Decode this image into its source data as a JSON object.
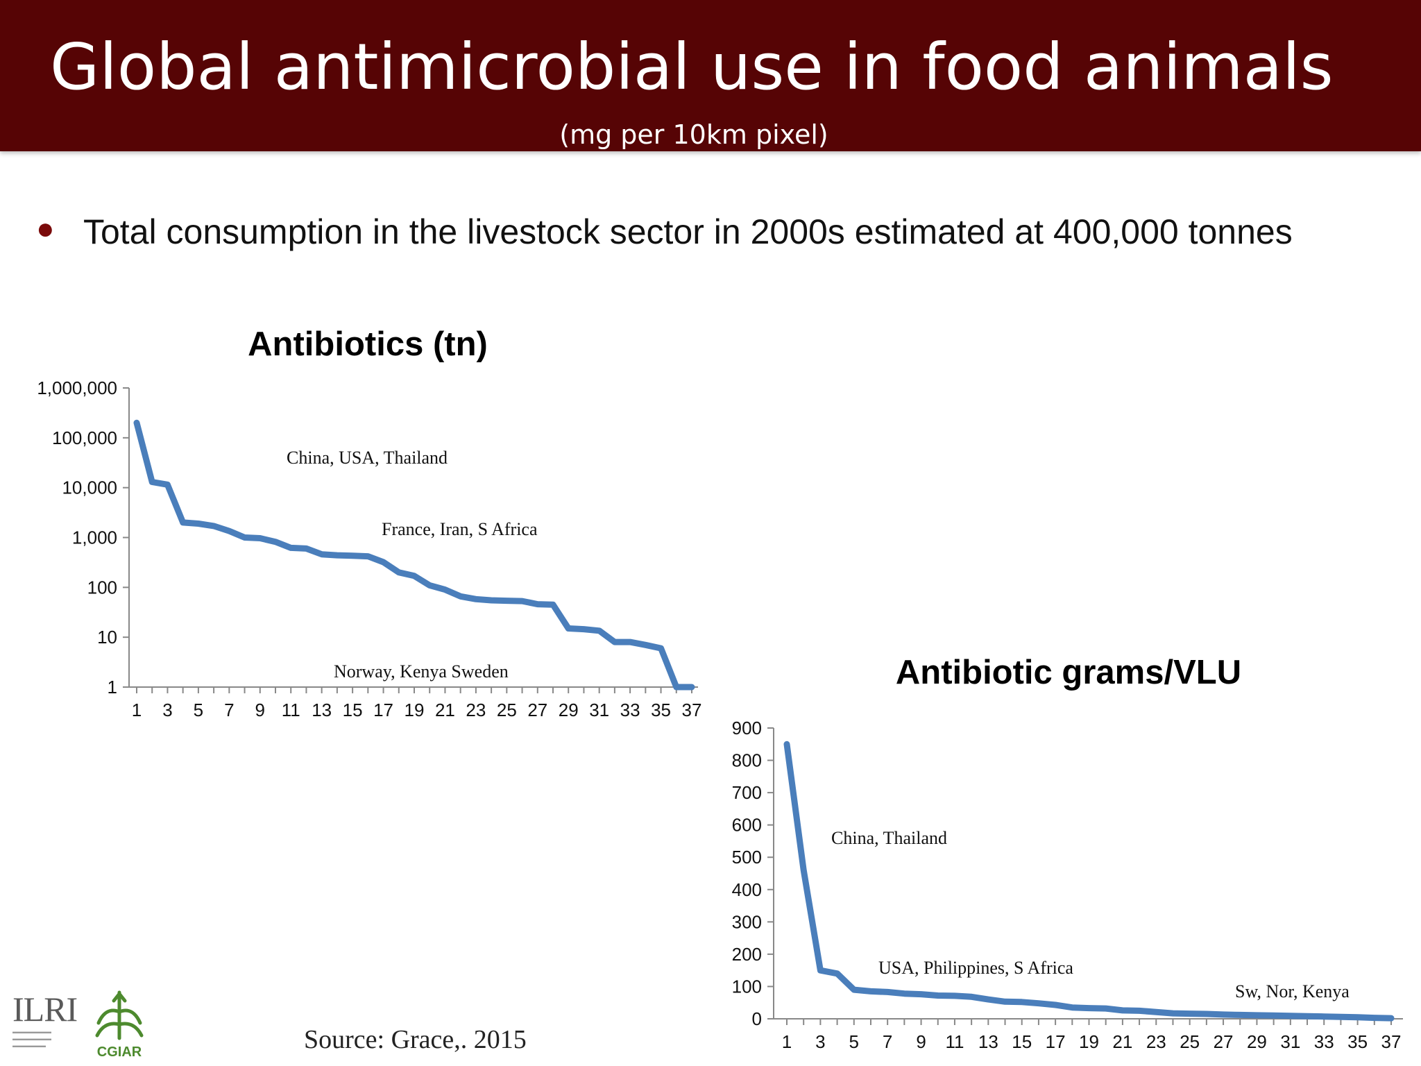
{
  "header": {
    "title": "Global antimicrobial use in food animals",
    "subtitle": "(mg per 10km pixel)"
  },
  "bullet": {
    "text": "Total consumption in the livestock sector in 2000s estimated at 400,000 tonnes"
  },
  "source": "Source: Grace,. 2015",
  "logos": {
    "ilri": "ILRI",
    "cgiar": "CGIAR"
  },
  "colors": {
    "header_bg": "#560405",
    "line": "#4a7ebb",
    "bullet": "#7a0a0a"
  },
  "chart_data": [
    {
      "type": "line",
      "title": "Antibiotics (tn)",
      "yscale": "log",
      "ylim": [
        1,
        1000000
      ],
      "y_ticks": [
        "1",
        "10",
        "100",
        "1,000",
        "10,000",
        "100,000",
        "1,000,000"
      ],
      "x_ticks": [
        "1",
        "3",
        "5",
        "7",
        "9",
        "11",
        "13",
        "15",
        "17",
        "19",
        "21",
        "23",
        "25",
        "27",
        "29",
        "31",
        "33",
        "35",
        "37"
      ],
      "x": [
        1,
        2,
        3,
        4,
        5,
        6,
        7,
        8,
        9,
        10,
        11,
        12,
        13,
        14,
        15,
        16,
        17,
        18,
        19,
        20,
        21,
        22,
        23,
        24,
        25,
        26,
        27,
        28,
        29,
        30,
        31,
        32,
        33,
        34,
        35,
        36,
        37
      ],
      "values": [
        200000,
        13000,
        11500,
        2000,
        1900,
        1700,
        1350,
        1000,
        970,
        820,
        620,
        600,
        460,
        440,
        430,
        420,
        320,
        200,
        170,
        110,
        90,
        66,
        58,
        55,
        54,
        53,
        46,
        45,
        15,
        14.5,
        13.5,
        8,
        8,
        7,
        6,
        1,
        1
      ],
      "annotations": [
        "China, USA, Thailand",
        "France, Iran, S Africa",
        "Norway, Kenya Sweden"
      ],
      "grid": false
    },
    {
      "type": "line",
      "title": "Antibiotic grams/VLU",
      "ylim": [
        0,
        900
      ],
      "y_ticks": [
        "0",
        "100",
        "200",
        "300",
        "400",
        "500",
        "600",
        "700",
        "800",
        "900"
      ],
      "x_ticks": [
        "1",
        "3",
        "5",
        "7",
        "9",
        "11",
        "13",
        "15",
        "17",
        "19",
        "21",
        "23",
        "25",
        "27",
        "29",
        "31",
        "33",
        "35",
        "37"
      ],
      "x": [
        1,
        2,
        3,
        4,
        5,
        6,
        7,
        8,
        9,
        10,
        11,
        12,
        13,
        14,
        15,
        16,
        17,
        18,
        19,
        20,
        21,
        22,
        23,
        24,
        25,
        26,
        27,
        28,
        29,
        30,
        31,
        32,
        33,
        34,
        35,
        36,
        37
      ],
      "values": [
        850,
        460,
        150,
        140,
        90,
        85,
        83,
        78,
        76,
        72,
        71,
        68,
        60,
        53,
        52,
        48,
        43,
        35,
        33,
        32,
        26,
        25,
        21,
        17,
        16,
        15,
        13,
        12,
        11,
        10,
        9,
        8,
        7,
        6,
        5,
        3,
        2
      ],
      "annotations": [
        "China, Thailand",
        "USA, Philippines, S Africa",
        "Sw, Nor, Kenya"
      ],
      "grid": false
    }
  ]
}
